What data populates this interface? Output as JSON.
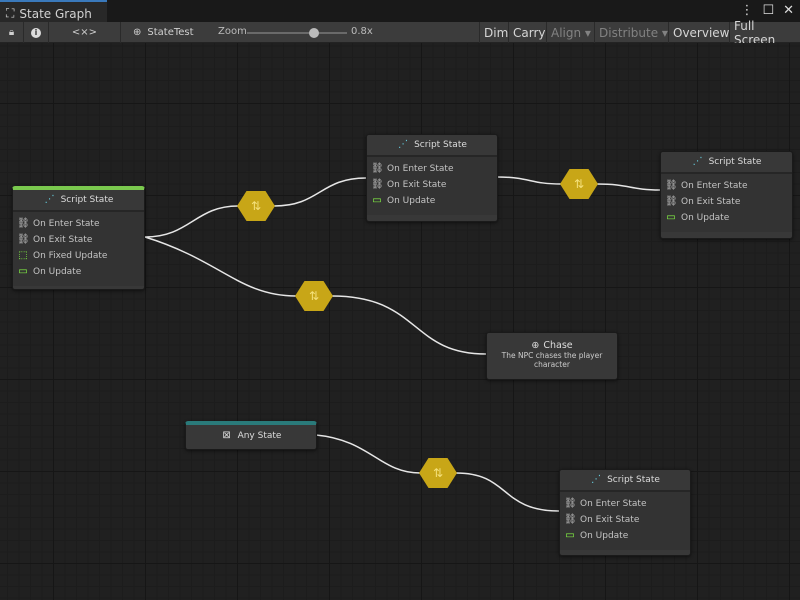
{
  "window": {
    "title": "State Graph",
    "icon": "hierarchy-icon"
  },
  "toolbar": {
    "lock": "lock-icon",
    "info": "info-icon",
    "code": "<×>",
    "graph_name": "StateTest",
    "zoom_label": "Zoom",
    "zoom_value": "0.8x",
    "zoom_fraction": 0.75,
    "buttons": {
      "dim": "Dim",
      "carry": "Carry",
      "align": "Align ▾",
      "distribute": "Distribute ▾",
      "overview": "Overview",
      "fullscreen": "Full Screen"
    }
  },
  "colors": {
    "start_state": "#7ac94e",
    "any_state": "#2a7a7a",
    "transition": "#c8a617",
    "accent": "#3a79bb"
  },
  "nodes": {
    "a": {
      "title": "Script State",
      "events": [
        "On Enter State",
        "On Exit State",
        "On Fixed Update",
        "On Update"
      ]
    },
    "b": {
      "title": "Script State",
      "events": [
        "On Enter State",
        "On Exit State",
        "On Update"
      ]
    },
    "c": {
      "title": "Script State",
      "events": [
        "On Enter State",
        "On Exit State",
        "On Update"
      ]
    },
    "chase": {
      "title": "Chase",
      "description": "The NPC chases the player character"
    },
    "any": {
      "title": "Any State"
    },
    "d": {
      "title": "Script State",
      "events": [
        "On Enter State",
        "On Exit State",
        "On Update"
      ]
    }
  }
}
